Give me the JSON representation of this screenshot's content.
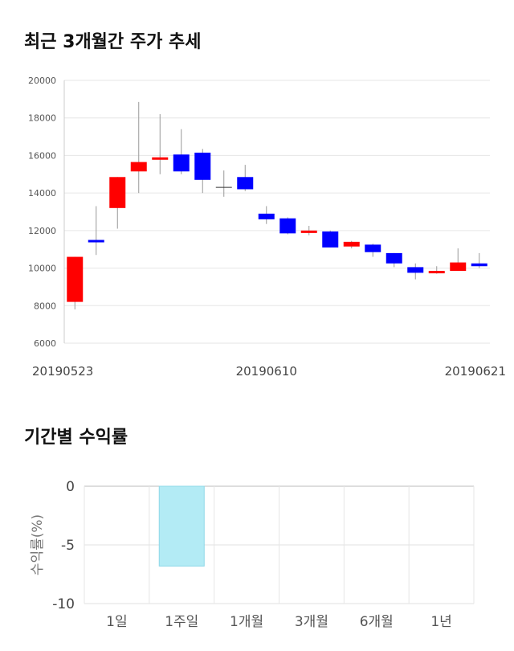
{
  "sections": {
    "candle_title": "최근 3개월간 주가 추세",
    "returns_title": "기간별 수익률"
  },
  "chart_data": [
    {
      "type": "candlestick",
      "title": "최근 3개월간 주가 추세",
      "ylim": [
        6000,
        20000
      ],
      "yticks": [
        "6000",
        "8000",
        "10000",
        "12000",
        "14000",
        "16000",
        "18000",
        "20000"
      ],
      "x_labels": [
        "20190523",
        "20190610",
        "20190621"
      ],
      "grid": true,
      "colors": {
        "up": "#ff0000",
        "down": "#0000ff",
        "wick": "#999999"
      },
      "candles": [
        {
          "open": 8200,
          "close": 10600,
          "high": 10600,
          "low": 7800
        },
        {
          "open": 11500,
          "close": 11450,
          "high": 13300,
          "low": 10700
        },
        {
          "open": 13200,
          "close": 14850,
          "high": 14850,
          "low": 12100
        },
        {
          "open": 15150,
          "close": 15650,
          "high": 18850,
          "low": 14000
        },
        {
          "open": 15800,
          "close": 15900,
          "high": 18200,
          "low": 15000
        },
        {
          "open": 16050,
          "close": 15150,
          "high": 17400,
          "low": 15000
        },
        {
          "open": 16150,
          "close": 14700,
          "high": 16350,
          "low": 14000
        },
        {
          "open": 14300,
          "close": 14300,
          "high": 15200,
          "low": 13800
        },
        {
          "open": 14850,
          "close": 14200,
          "high": 15500,
          "low": 14100
        },
        {
          "open": 12900,
          "close": 12600,
          "high": 13300,
          "low": 12350
        },
        {
          "open": 12650,
          "close": 11850,
          "high": 12700,
          "low": 11800
        },
        {
          "open": 11950,
          "close": 12000,
          "high": 12250,
          "low": 11750
        },
        {
          "open": 11950,
          "close": 11100,
          "high": 12000,
          "low": 11100
        },
        {
          "open": 11150,
          "close": 11400,
          "high": 11450,
          "low": 11050
        },
        {
          "open": 11250,
          "close": 10850,
          "high": 11300,
          "low": 10600
        },
        {
          "open": 10800,
          "close": 10250,
          "high": 10800,
          "low": 10050
        },
        {
          "open": 10050,
          "close": 9750,
          "high": 10250,
          "low": 9400
        },
        {
          "open": 9750,
          "close": 9850,
          "high": 10100,
          "low": 9700
        },
        {
          "open": 9850,
          "close": 10300,
          "high": 11050,
          "low": 9850
        },
        {
          "open": 10250,
          "close": 10100,
          "high": 10800,
          "low": 10000
        }
      ]
    },
    {
      "type": "bar",
      "title": "기간별 수익률",
      "ylabel": "수익률(%)",
      "ylim": [
        -10,
        0
      ],
      "yticks": [
        "0",
        "-5",
        "-10"
      ],
      "categories": [
        "1일",
        "1주일",
        "1개월",
        "3개월",
        "6개월",
        "1년"
      ],
      "values": [
        null,
        -6.8,
        null,
        null,
        null,
        null
      ],
      "grid": true,
      "colors": {
        "bar": "#b3ebf5",
        "bar_edge": "#8ed8e8"
      }
    }
  ]
}
